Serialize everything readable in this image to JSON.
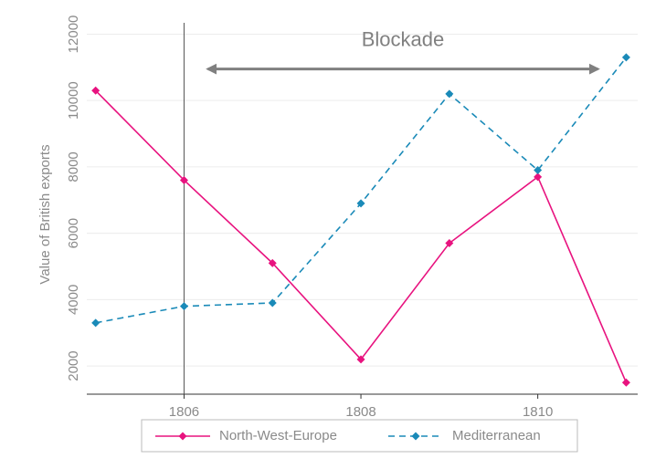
{
  "chart_data": {
    "type": "line",
    "y_label": "Value of British exports",
    "x": [
      1805,
      1806,
      1807,
      1808,
      1809,
      1810,
      1811
    ],
    "series": [
      {
        "name": "North-West-Europe",
        "color": "#e8137f",
        "dash": "solid",
        "values": [
          10300,
          7600,
          5100,
          2200,
          5700,
          7700,
          1500
        ]
      },
      {
        "name": "Mediterranean",
        "color": "#1a8ab8",
        "dash": "dashed",
        "values": [
          3300,
          3800,
          3900,
          6900,
          10200,
          7900,
          11300
        ]
      }
    ],
    "xlim": [
      1804.9,
      1811.13
    ],
    "xticks": [
      1806,
      1808,
      1810
    ],
    "ylim": [
      1150,
      12700
    ],
    "yticks": [
      2000,
      4000,
      6000,
      8000,
      10000,
      12000
    ],
    "grid": true,
    "legend": "bottom",
    "vline": 1806,
    "annotation": {
      "text": "Blockade",
      "x_start": 1806.27,
      "x_end": 1810.68,
      "y": 10950,
      "color": "#808080"
    }
  }
}
